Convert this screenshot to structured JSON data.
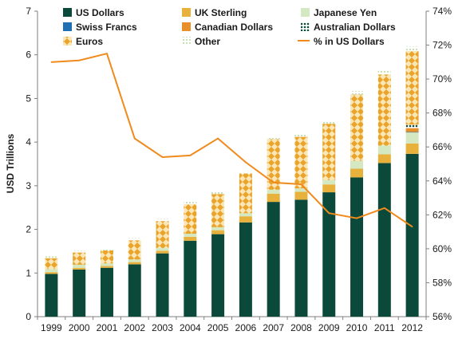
{
  "chart_data": {
    "type": "bar",
    "stacked": true,
    "title": "",
    "xlabel": "",
    "ylabel": "USD Trillions",
    "ylim": [
      0,
      7
    ],
    "y_ticks": [
      "0",
      "1",
      "2",
      "3",
      "4",
      "5",
      "6",
      "7"
    ],
    "y2lim": [
      56,
      74
    ],
    "y2_ticks": [
      "56%",
      "58%",
      "60%",
      "62%",
      "64%",
      "66%",
      "68%",
      "70%",
      "72%",
      "74%"
    ],
    "grid": false,
    "legend_position": "top",
    "categories": [
      "1999",
      "2000",
      "2001",
      "2002",
      "2003",
      "2004",
      "2005",
      "2006",
      "2007",
      "2008",
      "2009",
      "2010",
      "2011",
      "2012"
    ],
    "series": [
      {
        "name": "US Dollars",
        "color": "#0b4a3a",
        "pattern": "solid",
        "values": [
          0.98,
          1.08,
          1.12,
          1.2,
          1.45,
          1.74,
          1.89,
          2.16,
          2.63,
          2.68,
          2.85,
          3.19,
          3.52,
          3.73
        ]
      },
      {
        "name": "UK Sterling",
        "color": "#e8b13c",
        "pattern": "solid",
        "values": [
          0.04,
          0.04,
          0.04,
          0.05,
          0.06,
          0.09,
          0.09,
          0.14,
          0.19,
          0.18,
          0.18,
          0.2,
          0.2,
          0.24
        ]
      },
      {
        "name": "Japanese Yen",
        "color": "#d4e8c2",
        "pattern": "solid",
        "values": [
          0.07,
          0.07,
          0.06,
          0.06,
          0.06,
          0.07,
          0.07,
          0.07,
          0.09,
          0.08,
          0.1,
          0.18,
          0.2,
          0.25
        ]
      },
      {
        "name": "Swiss Francs",
        "color": "#1f6fb5",
        "pattern": "solid",
        "values": [
          0.0,
          0.0,
          0.0,
          0.0,
          0.0,
          0.0,
          0.0,
          0.0,
          0.0,
          0.0,
          0.0,
          0.0,
          0.0,
          0.01
        ]
      },
      {
        "name": "Canadian Dollars",
        "color": "#e8902a",
        "pattern": "solid",
        "values": [
          0.0,
          0.0,
          0.0,
          0.0,
          0.0,
          0.0,
          0.0,
          0.0,
          0.0,
          0.0,
          0.0,
          0.0,
          0.0,
          0.09
        ]
      },
      {
        "name": "Australian Dollars",
        "color": "#0b4a3a",
        "pattern": "dots",
        "values": [
          0.0,
          0.0,
          0.0,
          0.0,
          0.0,
          0.0,
          0.0,
          0.0,
          0.0,
          0.0,
          0.0,
          0.0,
          0.0,
          0.08
        ]
      },
      {
        "name": "Euros",
        "color": "#eaa42a",
        "pattern": "diamonds",
        "values": [
          0.25,
          0.28,
          0.3,
          0.44,
          0.62,
          0.68,
          0.76,
          0.91,
          1.16,
          1.18,
          1.29,
          1.52,
          1.63,
          1.69
        ]
      },
      {
        "name": "Other",
        "color": "#b5d99a",
        "pattern": "light-dots",
        "values": [
          0.04,
          0.04,
          0.04,
          0.05,
          0.05,
          0.05,
          0.05,
          0.05,
          0.05,
          0.07,
          0.06,
          0.08,
          0.1,
          0.1
        ]
      }
    ],
    "line_series": {
      "name": "% in US Dollars",
      "color": "#f08a1c",
      "axis": "right",
      "values": [
        71.0,
        71.1,
        71.5,
        66.5,
        65.4,
        65.5,
        66.5,
        65.1,
        63.9,
        63.8,
        62.1,
        61.8,
        62.4,
        61.3
      ]
    }
  }
}
